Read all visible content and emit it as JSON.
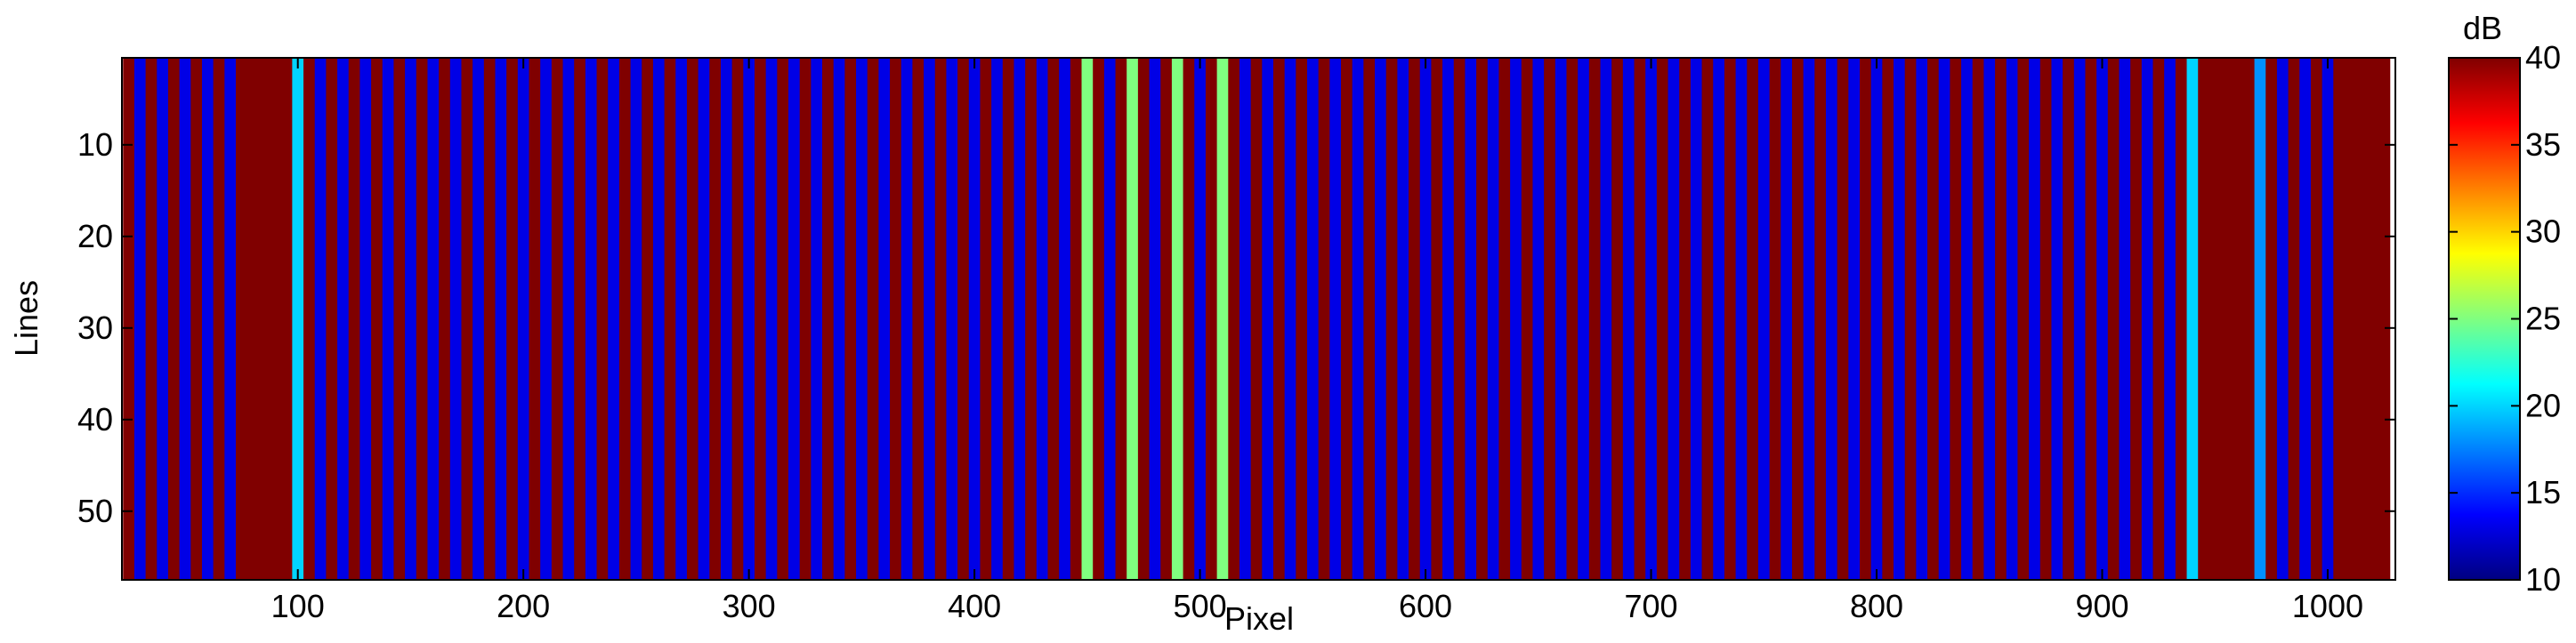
{
  "chart_data": {
    "type": "heatmap",
    "x_label": "Pixel",
    "y_label": "Lines",
    "colorbar_label": "dB",
    "colormap": "jet",
    "clim": [
      10,
      40
    ],
    "cticks": [
      10,
      15,
      20,
      25,
      30,
      35,
      40
    ],
    "xlim": [
      22,
      1030
    ],
    "xticks": [
      100,
      200,
      300,
      400,
      500,
      600,
      700,
      800,
      900,
      1000
    ],
    "ylim": [
      0.5,
      57.5
    ],
    "yticks": [
      10,
      20,
      30,
      40,
      50
    ],
    "y_reversed": true,
    "x": [
      25,
      30,
      35,
      40,
      45,
      50,
      55,
      60,
      65,
      70,
      75,
      80,
      85,
      90,
      95,
      100,
      105,
      110,
      115,
      120,
      125,
      130,
      135,
      140,
      145,
      150,
      155,
      160,
      165,
      170,
      175,
      180,
      185,
      190,
      195,
      200,
      205,
      210,
      215,
      220,
      225,
      230,
      235,
      240,
      245,
      250,
      255,
      260,
      265,
      270,
      275,
      280,
      285,
      290,
      295,
      300,
      305,
      310,
      315,
      320,
      325,
      330,
      335,
      340,
      345,
      350,
      355,
      360,
      365,
      370,
      375,
      380,
      385,
      390,
      395,
      400,
      405,
      410,
      415,
      420,
      425,
      430,
      435,
      440,
      445,
      450,
      455,
      460,
      465,
      470,
      475,
      480,
      485,
      490,
      495,
      500,
      505,
      510,
      515,
      520,
      525,
      530,
      535,
      540,
      545,
      550,
      555,
      560,
      565,
      570,
      575,
      580,
      585,
      590,
      595,
      600,
      605,
      610,
      615,
      620,
      625,
      630,
      635,
      640,
      645,
      650,
      655,
      660,
      665,
      670,
      675,
      680,
      685,
      690,
      695,
      700,
      705,
      710,
      715,
      720,
      725,
      730,
      735,
      740,
      745,
      750,
      755,
      760,
      765,
      770,
      775,
      780,
      785,
      790,
      795,
      800,
      805,
      810,
      815,
      820,
      825,
      830,
      835,
      840,
      845,
      850,
      855,
      860,
      865,
      870,
      875,
      880,
      885,
      890,
      895,
      900,
      905,
      910,
      915,
      920,
      925,
      930,
      935,
      940,
      945,
      950,
      955,
      960,
      965,
      970,
      975,
      980,
      985,
      990,
      995,
      1000,
      1005,
      1010,
      1015,
      1020,
      1025
    ],
    "values": [
      40,
      13,
      40,
      13,
      40,
      13,
      40,
      13,
      40,
      13,
      40,
      40,
      40,
      40,
      40,
      20,
      40,
      13,
      40,
      13,
      40,
      13,
      40,
      13,
      40,
      13,
      40,
      13,
      40,
      13,
      40,
      13,
      40,
      13,
      40,
      13,
      40,
      13,
      40,
      13,
      40,
      13,
      40,
      13,
      40,
      13,
      40,
      13,
      40,
      13,
      40,
      13,
      40,
      13,
      40,
      13,
      40,
      13,
      40,
      13,
      40,
      13,
      40,
      13,
      40,
      13,
      40,
      13,
      40,
      13,
      40,
      13,
      40,
      13,
      40,
      13,
      40,
      13,
      40,
      13,
      40,
      13,
      40,
      13,
      40,
      25,
      40,
      13,
      40,
      25,
      40,
      13,
      40,
      25,
      40,
      13,
      40,
      25,
      40,
      13,
      40,
      13,
      40,
      13,
      40,
      13,
      40,
      13,
      40,
      13,
      40,
      13,
      40,
      13,
      40,
      13,
      40,
      13,
      40,
      13,
      40,
      13,
      40,
      13,
      40,
      13,
      40,
      13,
      40,
      13,
      40,
      13,
      40,
      13,
      40,
      13,
      40,
      13,
      40,
      13,
      40,
      13,
      40,
      13,
      40,
      13,
      40,
      13,
      40,
      13,
      40,
      13,
      40,
      13,
      40,
      13,
      40,
      13,
      40,
      13,
      40,
      13,
      40,
      13,
      40,
      13,
      40,
      13,
      40,
      13,
      40,
      13,
      40,
      13,
      40,
      13,
      40,
      13,
      40,
      13,
      40,
      13,
      40,
      20,
      40,
      40,
      40,
      40,
      40,
      18,
      40,
      13,
      40,
      13,
      40,
      13,
      40,
      40,
      40,
      40,
      40
    ]
  }
}
